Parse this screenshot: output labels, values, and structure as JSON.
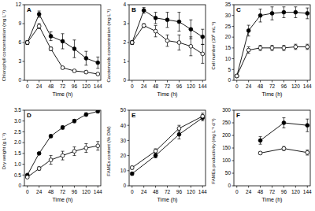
{
  "chart_data": [
    {
      "type": "line",
      "title": "A",
      "xlabel": "Time (h)",
      "ylabel": "Chlorophyll concentration (mg L⁻¹)",
      "x": [
        0,
        24,
        48,
        72,
        96,
        120,
        144
      ],
      "xlim": [
        -6,
        150
      ],
      "xticks": [
        0,
        24,
        48,
        72,
        96,
        120,
        144
      ],
      "ylim": [
        0,
        12
      ],
      "yticks": [
        0,
        3,
        6,
        9,
        12
      ],
      "series": [
        {
          "color": "#000000",
          "marker": "filled-circle",
          "values": [
            6.0,
            10.5,
            7.0,
            6.2,
            5.0,
            3.5,
            2.8
          ],
          "errors": [
            0.3,
            0.5,
            0.7,
            1.2,
            1.4,
            1.1,
            0.9
          ]
        },
        {
          "color": "#000000",
          "marker": "open-circle",
          "values": [
            6.0,
            8.6,
            5.0,
            2.0,
            1.5,
            1.3,
            1.0
          ],
          "errors": [
            0.3,
            0.4,
            0.3,
            0.2,
            0.2,
            0.2,
            0.2
          ]
        }
      ]
    },
    {
      "type": "line",
      "title": "B",
      "xlabel": "Time (h)",
      "ylabel": "Carotenoids concentration (mg L⁻¹)",
      "x": [
        0,
        24,
        48,
        72,
        96,
        120,
        144
      ],
      "xlim": [
        -6,
        150
      ],
      "xticks": [
        0,
        24,
        48,
        72,
        96,
        120,
        144
      ],
      "ylim": [
        0,
        4
      ],
      "yticks": [
        0,
        1,
        2,
        3,
        4
      ],
      "series": [
        {
          "color": "#000000",
          "marker": "filled-circle",
          "values": [
            2.0,
            3.7,
            3.3,
            3.2,
            3.1,
            2.7,
            2.3
          ],
          "errors": [
            0.1,
            0.15,
            0.3,
            0.4,
            0.5,
            0.5,
            0.4
          ]
        },
        {
          "color": "#000000",
          "marker": "open-circle",
          "values": [
            2.0,
            2.9,
            2.6,
            2.1,
            2.0,
            1.8,
            1.4
          ],
          "errors": [
            0.1,
            0.1,
            0.3,
            0.3,
            0.4,
            0.5,
            0.5
          ]
        }
      ]
    },
    {
      "type": "line",
      "title": "C",
      "xlabel": "Time (h)",
      "ylabel": "Cell number (10⁶ mL⁻¹)",
      "x": [
        0,
        24,
        48,
        72,
        96,
        120,
        144
      ],
      "xlim": [
        -6,
        150
      ],
      "xticks": [
        0,
        24,
        48,
        72,
        96,
        120,
        144
      ],
      "ylim": [
        0,
        35
      ],
      "yticks": [
        0,
        5,
        10,
        15,
        20,
        25,
        30,
        35
      ],
      "series": [
        {
          "color": "#000000",
          "marker": "filled-circle",
          "values": [
            2,
            23,
            30,
            31,
            31.5,
            31.5,
            31
          ],
          "errors": [
            0.3,
            2.5,
            3,
            3,
            2.5,
            2.5,
            2.5
          ]
        },
        {
          "color": "#000000",
          "marker": "open-circle",
          "values": [
            2,
            14,
            15,
            15,
            15,
            15.5,
            15.5
          ],
          "errors": [
            0.3,
            1.5,
            1.2,
            1.2,
            1.2,
            1.2,
            1.2
          ]
        }
      ]
    },
    {
      "type": "line",
      "title": "D",
      "xlabel": "Time (h)",
      "ylabel": "Dry weight (g L⁻¹)",
      "x": [
        0,
        24,
        48,
        72,
        96,
        120,
        144
      ],
      "xlim": [
        -6,
        150
      ],
      "xticks": [
        0,
        24,
        48,
        72,
        96,
        120,
        144
      ],
      "ylim": [
        0,
        3.5
      ],
      "yticks": [
        0,
        0.5,
        {
          "value": 1,
          "label": "1.0"
        },
        1.5,
        {
          "value": 2,
          "label": "2.0"
        },
        2.5,
        {
          "value": 3,
          "label": "3.0"
        },
        3.5
      ],
      "series": [
        {
          "color": "#000000",
          "marker": "filled-circle",
          "values": [
            0.5,
            1.5,
            2.3,
            2.7,
            3.0,
            3.3,
            3.45
          ],
          "errors": [
            0.03,
            0.05,
            0.07,
            0.08,
            0.08,
            0.08,
            0.08
          ]
        },
        {
          "color": "#000000",
          "marker": "open-circle",
          "values": [
            0.4,
            0.8,
            1.2,
            1.4,
            1.6,
            1.75,
            1.85
          ],
          "errors": [
            0.03,
            0.08,
            0.2,
            0.2,
            0.2,
            0.2,
            0.2
          ]
        }
      ]
    },
    {
      "type": "line",
      "title": "E",
      "xlabel": "Time (h)",
      "ylabel": "FAMEs content (% DW)",
      "x": [
        0,
        48,
        96,
        144
      ],
      "xlim": [
        -6,
        150
      ],
      "xticks": [
        0,
        24,
        48,
        72,
        96,
        120,
        144
      ],
      "ylim": [
        0,
        50
      ],
      "yticks": [
        0,
        10,
        20,
        30,
        40,
        50
      ],
      "series": [
        {
          "color": "#000000",
          "marker": "filled-circle",
          "values": [
            8,
            20,
            34,
            45
          ],
          "errors": [
            1,
            1.5,
            3,
            2
          ]
        },
        {
          "color": "#000000",
          "marker": "open-circle",
          "values": [
            12,
            23,
            38,
            46
          ],
          "errors": [
            1,
            1.5,
            2,
            2
          ]
        }
      ]
    },
    {
      "type": "line",
      "title": "F",
      "xlabel": "Time (h)",
      "ylabel": "FAMEs productivity (mg L⁻¹ d⁻¹)",
      "x": [
        48,
        96,
        144
      ],
      "xlim": [
        -6,
        150
      ],
      "xticks": [
        0,
        24,
        48,
        72,
        96,
        120,
        144
      ],
      "ylim": [
        0,
        300
      ],
      "yticks": [
        0,
        50,
        100,
        150,
        200,
        250,
        300
      ],
      "series": [
        {
          "color": "#000000",
          "marker": "filled-circle",
          "values": [
            180,
            250,
            240
          ],
          "errors": [
            15,
            20,
            25
          ]
        },
        {
          "color": "#000000",
          "marker": "open-circle",
          "values": [
            130,
            148,
            132
          ],
          "errors": [
            5,
            8,
            10
          ]
        }
      ]
    }
  ]
}
